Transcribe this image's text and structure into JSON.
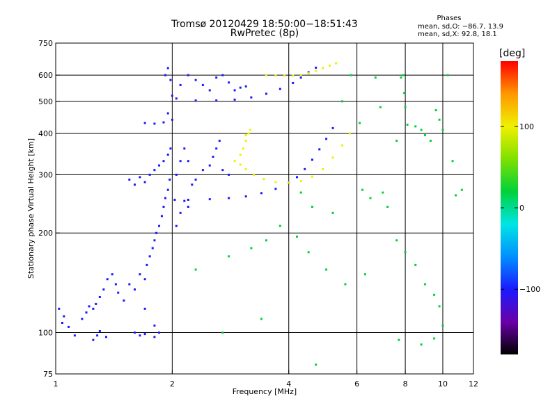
{
  "header": {
    "title_line1": "Tromsø 20120429 18:50:00−18:51:43",
    "title_line2": "RwPretec (8p)",
    "phases_heading": "Phases",
    "phase_o": "mean, sd,O: −86.7, 13.9",
    "phase_x": "mean, sd,X:  92.8, 18.1"
  },
  "chart_data": {
    "type": "scatter",
    "xlabel": "Frequency [MHz]",
    "ylabel": "Stationary phase Virtual Height [km]",
    "x_scale": "log",
    "y_scale": "log",
    "xlim": [
      1,
      12
    ],
    "ylim": [
      75,
      750
    ],
    "x_ticks": [
      1,
      2,
      4,
      6,
      8,
      10,
      12
    ],
    "x_ticklabels": [
      "1",
      "2",
      "4",
      "6",
      "8",
      "10",
      "12"
    ],
    "y_ticks": [
      75,
      100,
      200,
      300,
      400,
      500,
      600,
      750
    ],
    "y_ticklabels": [
      "75",
      "100",
      "200",
      "300",
      "400",
      "500",
      "600",
      "750"
    ],
    "x_gridlines": [
      2,
      4,
      6,
      8,
      10
    ],
    "y_gridlines": [
      100,
      200,
      300,
      400,
      500,
      600
    ],
    "grid": true,
    "colorbar": {
      "label": "[deg]",
      "range": [
        -180,
        180
      ],
      "ticks": [
        100,
        0,
        -100
      ],
      "ticklabels": [
        "100",
        "0",
        "−100"
      ],
      "colormap": [
        "#000000",
        "#6a00a8",
        "#1a1aff",
        "#0090ff",
        "#00e5e5",
        "#00d23a",
        "#80e000",
        "#f0f000",
        "#ff9800",
        "#ff0000"
      ]
    },
    "series": [
      {
        "kind": "low-frequency scatter cloud",
        "phase": -100,
        "points": [
          [
            1.02,
            118
          ],
          [
            1.04,
            107
          ],
          [
            1.05,
            112
          ],
          [
            1.08,
            104
          ],
          [
            1.12,
            98
          ],
          [
            1.17,
            110
          ],
          [
            1.2,
            115
          ],
          [
            1.22,
            120
          ],
          [
            1.25,
            118
          ],
          [
            1.27,
            122
          ],
          [
            1.3,
            128
          ],
          [
            1.33,
            135
          ],
          [
            1.36,
            145
          ],
          [
            1.4,
            150
          ],
          [
            1.43,
            140
          ],
          [
            1.45,
            132
          ],
          [
            1.25,
            95
          ],
          [
            1.28,
            98
          ],
          [
            1.3,
            101
          ],
          [
            1.35,
            97
          ],
          [
            1.5,
            125
          ],
          [
            1.55,
            140
          ],
          [
            1.6,
            135
          ],
          [
            1.65,
            150
          ],
          [
            1.7,
            145
          ],
          [
            1.72,
            160
          ],
          [
            1.75,
            170
          ],
          [
            1.78,
            180
          ],
          [
            1.8,
            190
          ],
          [
            1.82,
            200
          ],
          [
            1.85,
            210
          ],
          [
            1.88,
            225
          ],
          [
            1.9,
            240
          ],
          [
            1.92,
            255
          ],
          [
            1.95,
            270
          ],
          [
            1.97,
            290
          ],
          [
            1.55,
            290
          ],
          [
            1.6,
            280
          ],
          [
            1.65,
            295
          ],
          [
            1.7,
            285
          ],
          [
            1.75,
            300
          ],
          [
            1.8,
            310
          ],
          [
            1.85,
            320
          ],
          [
            1.9,
            330
          ],
          [
            1.95,
            345
          ],
          [
            1.98,
            360
          ],
          [
            1.7,
            430
          ],
          [
            1.8,
            428
          ],
          [
            1.9,
            432
          ],
          [
            2.0,
            440
          ],
          [
            1.95,
            460
          ],
          [
            1.92,
            600
          ],
          [
            1.95,
            630
          ],
          [
            1.98,
            580
          ],
          [
            2.0,
            520
          ],
          [
            2.1,
            560
          ],
          [
            2.2,
            600
          ],
          [
            2.3,
            580
          ],
          [
            2.4,
            560
          ],
          [
            2.5,
            540
          ],
          [
            2.6,
            590
          ],
          [
            2.7,
            600
          ],
          [
            2.8,
            570
          ],
          [
            2.9,
            540
          ],
          [
            3.0,
            550
          ],
          [
            3.1,
            555
          ],
          [
            2.05,
            300
          ],
          [
            2.1,
            330
          ],
          [
            2.15,
            360
          ],
          [
            2.2,
            330
          ],
          [
            2.25,
            280
          ],
          [
            2.3,
            290
          ],
          [
            2.4,
            310
          ],
          [
            2.5,
            320
          ],
          [
            2.55,
            340
          ],
          [
            2.6,
            360
          ],
          [
            2.65,
            380
          ],
          [
            2.7,
            310
          ],
          [
            2.8,
            300
          ],
          [
            2.05,
            210
          ],
          [
            2.1,
            230
          ],
          [
            2.15,
            250
          ],
          [
            2.2,
            240
          ],
          [
            1.6,
            100
          ],
          [
            1.65,
            98
          ],
          [
            1.7,
            99
          ],
          [
            1.8,
            97
          ],
          [
            1.85,
            100
          ],
          [
            1.7,
            118
          ],
          [
            1.8,
            105
          ]
        ]
      },
      {
        "kind": "O-mode trace (lower layer)",
        "phase": -95,
        "points": [
          [
            2.03,
            252
          ],
          [
            2.2,
            252
          ],
          [
            2.5,
            253
          ],
          [
            2.8,
            255
          ],
          [
            3.1,
            258
          ],
          [
            3.4,
            264
          ],
          [
            3.7,
            272
          ],
          [
            4.0,
            284
          ],
          [
            4.2,
            295
          ],
          [
            4.4,
            312
          ],
          [
            4.6,
            333
          ],
          [
            4.8,
            358
          ],
          [
            5.0,
            385
          ],
          [
            5.2,
            415
          ]
        ]
      },
      {
        "kind": "O-mode trace (upper layer)",
        "phase": -95,
        "points": [
          [
            2.05,
            510
          ],
          [
            2.3,
            503
          ],
          [
            2.6,
            503
          ],
          [
            2.9,
            506
          ],
          [
            3.2,
            514
          ],
          [
            3.5,
            527
          ],
          [
            3.8,
            545
          ],
          [
            4.1,
            568
          ],
          [
            4.3,
            590
          ],
          [
            4.5,
            612
          ],
          [
            4.7,
            632
          ]
        ]
      },
      {
        "kind": "X-mode trace (lower layer)",
        "phase": 92,
        "points": [
          [
            2.9,
            330
          ],
          [
            3.0,
            322
          ],
          [
            3.1,
            312
          ],
          [
            3.25,
            300
          ],
          [
            3.45,
            291
          ],
          [
            3.7,
            285
          ],
          [
            4.0,
            284
          ],
          [
            4.3,
            287
          ],
          [
            4.6,
            296
          ],
          [
            4.9,
            312
          ],
          [
            5.2,
            338
          ],
          [
            5.5,
            368
          ],
          [
            5.75,
            400
          ]
        ]
      },
      {
        "kind": "X-mode trace (upper layer)",
        "phase": 92,
        "points": [
          [
            3.5,
            600
          ],
          [
            3.7,
            598
          ],
          [
            3.9,
            598
          ],
          [
            4.1,
            598
          ],
          [
            4.3,
            601
          ],
          [
            4.5,
            608
          ],
          [
            4.7,
            618
          ],
          [
            4.9,
            630
          ],
          [
            5.1,
            641
          ],
          [
            5.3,
            652
          ]
        ]
      },
      {
        "kind": "X-mode echoes near 3 MHz",
        "phase": 100,
        "points": [
          [
            3.0,
            345
          ],
          [
            3.05,
            360
          ],
          [
            3.1,
            380
          ],
          [
            3.15,
            400
          ],
          [
            3.18,
            410
          ],
          [
            3.1,
            395
          ]
        ]
      },
      {
        "kind": "scattered isolated echoes",
        "phase": 0,
        "points": [
          [
            6.2,
            270
          ],
          [
            6.5,
            255
          ],
          [
            7.0,
            265
          ],
          [
            7.2,
            240
          ],
          [
            7.6,
            380
          ],
          [
            7.8,
            590
          ],
          [
            7.9,
            600
          ],
          [
            7.95,
            530
          ],
          [
            8.0,
            480
          ],
          [
            8.1,
            425
          ],
          [
            8.5,
            420
          ],
          [
            8.8,
            410
          ],
          [
            9.0,
            395
          ],
          [
            9.3,
            380
          ],
          [
            9.6,
            470
          ],
          [
            9.8,
            440
          ],
          [
            10.0,
            410
          ],
          [
            10.3,
            600
          ],
          [
            10.6,
            330
          ],
          [
            10.8,
            260
          ],
          [
            11.2,
            270
          ],
          [
            6.3,
            150
          ],
          [
            7.6,
            190
          ],
          [
            8.0,
            175
          ],
          [
            8.5,
            160
          ],
          [
            9.0,
            140
          ],
          [
            9.5,
            130
          ],
          [
            9.8,
            120
          ],
          [
            10.0,
            105
          ],
          [
            7.7,
            95
          ],
          [
            8.8,
            92
          ],
          [
            9.5,
            96
          ],
          [
            4.2,
            195
          ],
          [
            4.5,
            175
          ],
          [
            5.0,
            155
          ],
          [
            5.6,
            140
          ],
          [
            2.8,
            170
          ],
          [
            3.2,
            180
          ],
          [
            3.5,
            190
          ],
          [
            3.8,
            210
          ],
          [
            4.3,
            265
          ],
          [
            4.6,
            240
          ],
          [
            5.2,
            230
          ],
          [
            4.7,
            80
          ],
          [
            3.4,
            110
          ],
          [
            2.7,
            100
          ],
          [
            2.3,
            155
          ],
          [
            6.7,
            590
          ],
          [
            6.9,
            480
          ],
          [
            6.1,
            430
          ],
          [
            5.8,
            600
          ],
          [
            5.5,
            500
          ]
        ]
      }
    ]
  }
}
